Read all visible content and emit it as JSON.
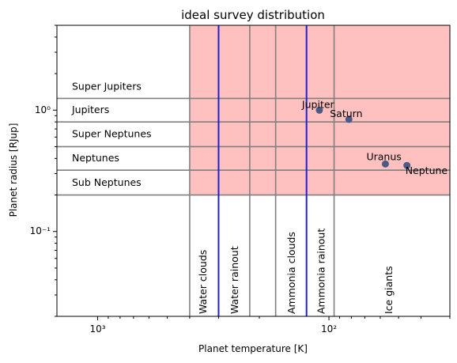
{
  "chart_data": {
    "type": "scatter",
    "title": "ideal survey distribution",
    "xlabel": "Planet temperature [K]",
    "ylabel": "Planet radius [RJup]",
    "x_scale": "log",
    "y_scale": "log",
    "x_inverted": true,
    "xlim": [
      1500,
      30
    ],
    "ylim": [
      0.02,
      5
    ],
    "grid": false,
    "x_ticks": [
      {
        "value": 1000,
        "label": "10³"
      },
      {
        "value": 100,
        "label": "10²"
      }
    ],
    "y_ticks": [
      {
        "value": 1,
        "label": "10⁰"
      },
      {
        "value": 0.1,
        "label": "10⁻¹"
      }
    ],
    "colors": {
      "highlight_region": "#ffc0c0",
      "band_line": "#808080",
      "boundary_line": "#2020d0",
      "point": "#4a5a85",
      "axis": "#000000"
    },
    "highlight_region": {
      "x_from": 400,
      "x_to": 30,
      "y_from": 0.2,
      "y_to": 5
    },
    "radius_bands": [
      {
        "label": "Super Jupiters",
        "y_low": 1.25,
        "y_high": 5,
        "label_y": 1.55
      },
      {
        "label": "Jupiters",
        "y_low": 0.8,
        "y_high": 1.25,
        "label_y": 1.0
      },
      {
        "label": "Super Neptunes",
        "y_low": 0.5,
        "y_high": 0.8,
        "label_y": 0.63
      },
      {
        "label": "Neptunes",
        "y_low": 0.32,
        "y_high": 0.5,
        "label_y": 0.4
      },
      {
        "label": "Sub Neptunes",
        "y_low": 0.2,
        "y_high": 0.32,
        "label_y": 0.25
      }
    ],
    "temperature_lines": [
      400,
      300,
      220,
      170,
      125,
      95
    ],
    "boundary_lines": [
      300,
      125
    ],
    "temperature_zones": [
      {
        "label": "Water clouds",
        "x": 350
      },
      {
        "label": "Water rainout",
        "x": 255
      },
      {
        "label": "Ammonia clouds",
        "x": 145
      },
      {
        "label": "Ammonia rainout",
        "x": 108
      },
      {
        "label": "Ice giants",
        "x": 55
      }
    ],
    "points": [
      {
        "name": "Jupiter",
        "x": 110,
        "y": 1.0
      },
      {
        "name": "Saturn",
        "x": 82,
        "y": 0.84
      },
      {
        "name": "Uranus",
        "x": 57,
        "y": 0.36
      },
      {
        "name": "Neptune",
        "x": 46,
        "y": 0.35
      }
    ]
  }
}
